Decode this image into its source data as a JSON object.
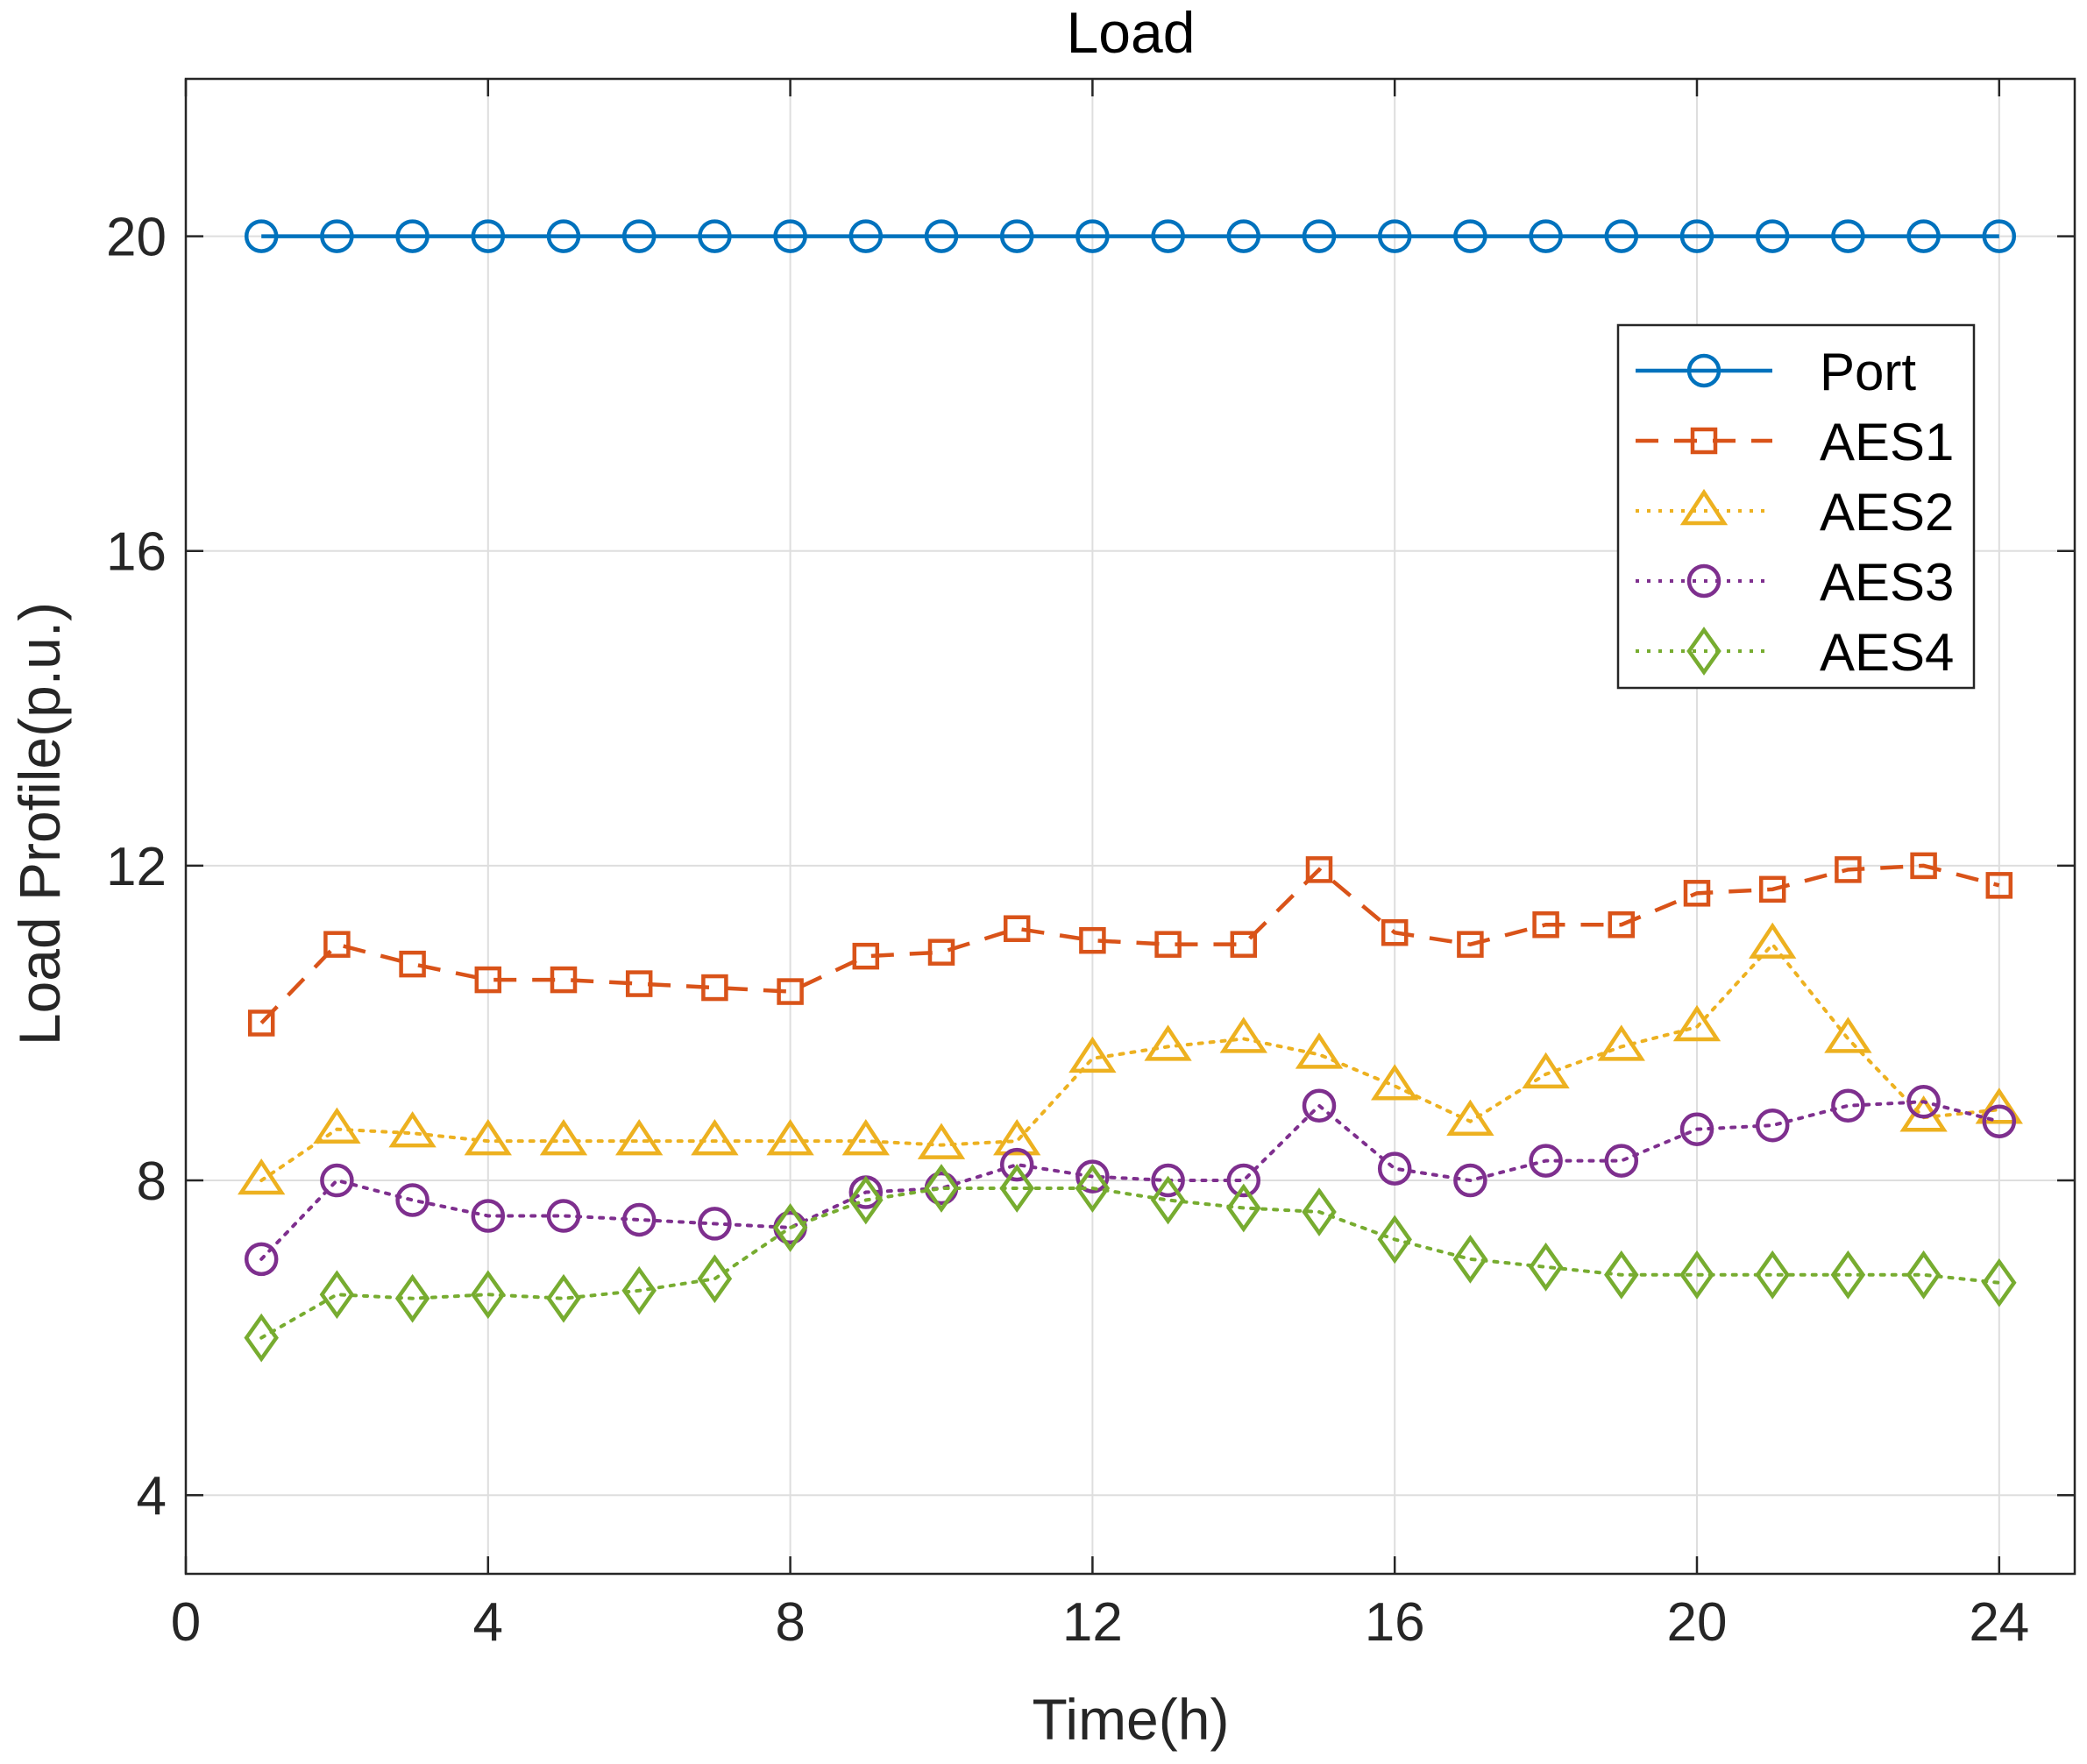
{
  "chart_data": {
    "type": "line",
    "title": "Load",
    "xlabel": "Time(h)",
    "ylabel": "Load Profile(p.u.)",
    "xlim": [
      0,
      25
    ],
    "ylim": [
      3,
      22
    ],
    "xticks": [
      0,
      4,
      8,
      12,
      16,
      20,
      24
    ],
    "yticks": [
      4,
      8,
      12,
      16,
      20
    ],
    "xtick_labels": [
      "0",
      "4",
      "8",
      "12",
      "16",
      "20",
      "24"
    ],
    "ytick_labels": [
      "4",
      "8",
      "12",
      "16",
      "20"
    ],
    "grid": true,
    "legend_position": "top-right",
    "x": [
      1,
      2,
      3,
      4,
      5,
      6,
      7,
      8,
      9,
      10,
      11,
      12,
      13,
      14,
      15,
      16,
      17,
      18,
      19,
      20,
      21,
      22,
      23,
      24
    ],
    "series": [
      {
        "name": "Port",
        "color": "#0072BD",
        "line_style": "solid",
        "marker": "circle",
        "values": [
          20,
          20,
          20,
          20,
          20,
          20,
          20,
          20,
          20,
          20,
          20,
          20,
          20,
          20,
          20,
          20,
          20,
          20,
          20,
          20,
          20,
          20,
          20,
          20
        ]
      },
      {
        "name": "AES1",
        "color": "#D95319",
        "line_style": "dashed",
        "marker": "square",
        "values": [
          10.0,
          11.0,
          10.75,
          10.55,
          10.55,
          10.5,
          10.45,
          10.4,
          10.85,
          10.9,
          11.2,
          11.05,
          11.0,
          11.0,
          11.95,
          11.15,
          11.0,
          11.25,
          11.25,
          11.65,
          11.7,
          11.95,
          12.0,
          11.75
        ]
      },
      {
        "name": "AES2",
        "color": "#EDB120",
        "line_style": "dotted",
        "marker": "triangle",
        "values": [
          8.0,
          8.65,
          8.6,
          8.5,
          8.5,
          8.5,
          8.5,
          8.5,
          8.5,
          8.45,
          8.5,
          9.55,
          9.7,
          9.8,
          9.6,
          9.2,
          8.75,
          9.35,
          9.7,
          9.95,
          11.0,
          9.8,
          8.8,
          8.9
        ]
      },
      {
        "name": "AES3",
        "color": "#7E2F8E",
        "line_style": "dotted",
        "marker": "circle",
        "values": [
          7.0,
          8.0,
          7.75,
          7.55,
          7.55,
          7.5,
          7.45,
          7.4,
          7.85,
          7.9,
          8.2,
          8.05,
          8.0,
          8.0,
          8.95,
          8.15,
          8.0,
          8.25,
          8.25,
          8.65,
          8.7,
          8.95,
          9.0,
          8.75
        ]
      },
      {
        "name": "AES4",
        "color": "#77AC30",
        "line_style": "dotted",
        "marker": "diamond",
        "values": [
          6.0,
          6.55,
          6.5,
          6.55,
          6.5,
          6.6,
          6.75,
          7.4,
          7.75,
          7.9,
          7.9,
          7.9,
          7.75,
          7.65,
          7.6,
          7.25,
          7.0,
          6.9,
          6.8,
          6.8,
          6.8,
          6.8,
          6.8,
          6.7
        ]
      }
    ]
  }
}
